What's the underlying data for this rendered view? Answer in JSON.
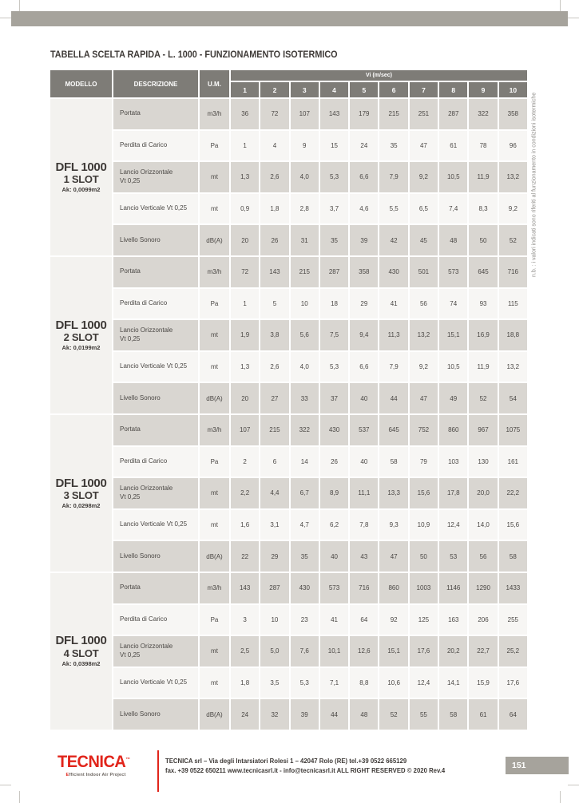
{
  "title": "TABELLA SCELTA RAPIDA - L. 1000 - FUNZIONAMENTO ISOTERMICO",
  "side_note": "n.b. : i valori indicati sono riferiti al funzionamento in condizioni isotermiche",
  "table": {
    "headers": {
      "modello": "MODELLO",
      "descrizione": "DESCRIZIONE",
      "um": "U.M.",
      "vi_group": "Vi (m/sec)"
    },
    "vi_columns": [
      "1",
      "2",
      "3",
      "4",
      "5",
      "6",
      "7",
      "8",
      "9",
      "10"
    ],
    "blocks": [
      {
        "model": "DFL 1000",
        "slot": "1 SLOT",
        "ak": "Ak: 0,0099m2",
        "rows": [
          {
            "label": "Portata",
            "um": "m3/h",
            "values": [
              "36",
              "72",
              "107",
              "143",
              "179",
              "215",
              "251",
              "287",
              "322",
              "358"
            ]
          },
          {
            "label": "Perdita di Carico",
            "um": "Pa",
            "values": [
              "1",
              "4",
              "9",
              "15",
              "24",
              "35",
              "47",
              "61",
              "78",
              "96"
            ]
          },
          {
            "label": "Lancio Orizzontale",
            "label2": "Vt 0,25",
            "um": "mt",
            "values": [
              "1,3",
              "2,6",
              "4,0",
              "5,3",
              "6,6",
              "7,9",
              "9,2",
              "10,5",
              "11,9",
              "13,2"
            ]
          },
          {
            "label": "Lancio Verticale Vt 0,25",
            "um": "mt",
            "values": [
              "0,9",
              "1,8",
              "2,8",
              "3,7",
              "4,6",
              "5,5",
              "6,5",
              "7,4",
              "8,3",
              "9,2"
            ]
          },
          {
            "label": "Livello Sonoro",
            "um": "dB(A)",
            "values": [
              "20",
              "26",
              "31",
              "35",
              "39",
              "42",
              "45",
              "48",
              "50",
              "52"
            ]
          }
        ]
      },
      {
        "model": "DFL 1000",
        "slot": "2 SLOT",
        "ak": "Ak: 0,0199m2",
        "rows": [
          {
            "label": "Portata",
            "um": "m3/h",
            "values": [
              "72",
              "143",
              "215",
              "287",
              "358",
              "430",
              "501",
              "573",
              "645",
              "716"
            ]
          },
          {
            "label": "Perdita di Carico",
            "um": "Pa",
            "values": [
              "1",
              "5",
              "10",
              "18",
              "29",
              "41",
              "56",
              "74",
              "93",
              "115"
            ]
          },
          {
            "label": "Lancio Orizzontale",
            "label2": "Vt 0,25",
            "um": "mt",
            "values": [
              "1,9",
              "3,8",
              "5,6",
              "7,5",
              "9,4",
              "11,3",
              "13,2",
              "15,1",
              "16,9",
              "18,8"
            ]
          },
          {
            "label": "Lancio Verticale Vt 0,25",
            "um": "mt",
            "values": [
              "1,3",
              "2,6",
              "4,0",
              "5,3",
              "6,6",
              "7,9",
              "9,2",
              "10,5",
              "11,9",
              "13,2"
            ]
          },
          {
            "label": "Livello Sonoro",
            "um": "dB(A)",
            "values": [
              "20",
              "27",
              "33",
              "37",
              "40",
              "44",
              "47",
              "49",
              "52",
              "54"
            ]
          }
        ]
      },
      {
        "model": "DFL 1000",
        "slot": "3 SLOT",
        "ak": "Ak: 0,0298m2",
        "rows": [
          {
            "label": "Portata",
            "um": "m3/h",
            "values": [
              "107",
              "215",
              "322",
              "430",
              "537",
              "645",
              "752",
              "860",
              "967",
              "1075"
            ]
          },
          {
            "label": "Perdita di Carico",
            "um": "Pa",
            "values": [
              "2",
              "6",
              "14",
              "26",
              "40",
              "58",
              "79",
              "103",
              "130",
              "161"
            ]
          },
          {
            "label": "Lancio Orizzontale",
            "label2": "Vt 0,25",
            "um": "mt",
            "values": [
              "2,2",
              "4,4",
              "6,7",
              "8,9",
              "11,1",
              "13,3",
              "15,6",
              "17,8",
              "20,0",
              "22,2"
            ]
          },
          {
            "label": "Lancio Verticale Vt 0,25",
            "um": "mt",
            "values": [
              "1,6",
              "3,1",
              "4,7",
              "6,2",
              "7,8",
              "9,3",
              "10,9",
              "12,4",
              "14,0",
              "15,6"
            ]
          },
          {
            "label": "Livello Sonoro",
            "um": "dB(A)",
            "values": [
              "22",
              "29",
              "35",
              "40",
              "43",
              "47",
              "50",
              "53",
              "56",
              "58"
            ]
          }
        ]
      },
      {
        "model": "DFL 1000",
        "slot": "4 SLOT",
        "ak": "Ak: 0,0398m2",
        "rows": [
          {
            "label": "Portata",
            "um": "m3/h",
            "values": [
              "143",
              "287",
              "430",
              "573",
              "716",
              "860",
              "1003",
              "1146",
              "1290",
              "1433"
            ]
          },
          {
            "label": "Perdita di Carico",
            "um": "Pa",
            "values": [
              "3",
              "10",
              "23",
              "41",
              "64",
              "92",
              "125",
              "163",
              "206",
              "255"
            ]
          },
          {
            "label": "Lancio Orizzontale",
            "label2": "Vt 0,25",
            "um": "mt",
            "values": [
              "2,5",
              "5,0",
              "7,6",
              "10,1",
              "12,6",
              "15,1",
              "17,6",
              "20,2",
              "22,7",
              "25,2"
            ]
          },
          {
            "label": "Lancio Verticale Vt 0,25",
            "um": "mt",
            "values": [
              "1,8",
              "3,5",
              "5,3",
              "7,1",
              "8,8",
              "10,6",
              "12,4",
              "14,1",
              "15,9",
              "17,6"
            ]
          },
          {
            "label": "Livello Sonoro",
            "um": "dB(A)",
            "values": [
              "24",
              "32",
              "39",
              "44",
              "48",
              "52",
              "55",
              "58",
              "61",
              "64"
            ]
          }
        ]
      }
    ]
  },
  "footer": {
    "logo_text": "TECNICA",
    "logo_tm": "™",
    "logo_tagline": "Efficient Indoor Air Project",
    "address_line1": "TECNICA srl – Via degli Intarsiatori Rolesi 1 – 42047 Rolo (RE) tel.+39 0522 665129",
    "address_line2": "fax. +39 0522 650211 www.tecnicasrl.it - info@tecnicasrl.it   ALL RIGHT RESERVED © 2020 Rev.4",
    "page_number": "151"
  },
  "colors": {
    "accent_red": "#e1251b",
    "header_gray": "#7e7c77",
    "bar_gray": "#a6a39c",
    "row_gray": "#d9d6d1",
    "row_light": "#f7f6f4"
  }
}
